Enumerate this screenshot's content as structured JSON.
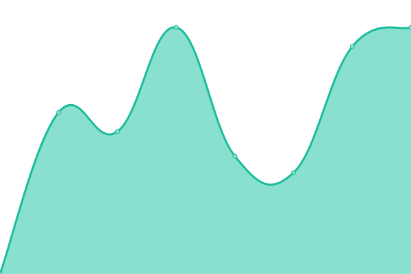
{
  "chart_data": {
    "type": "area",
    "x": [
      0,
      1,
      2,
      3,
      4,
      5,
      6,
      7
    ],
    "values": [
      0,
      59,
      52,
      90,
      43,
      37,
      83,
      90
    ],
    "ylim": [
      0,
      100
    ],
    "smooth": true,
    "show_points": true,
    "grid": false,
    "axes": false,
    "colors": {
      "line": "#1abc9c",
      "fill": "#89e0ce",
      "point_fill": "#89e0ce"
    }
  }
}
